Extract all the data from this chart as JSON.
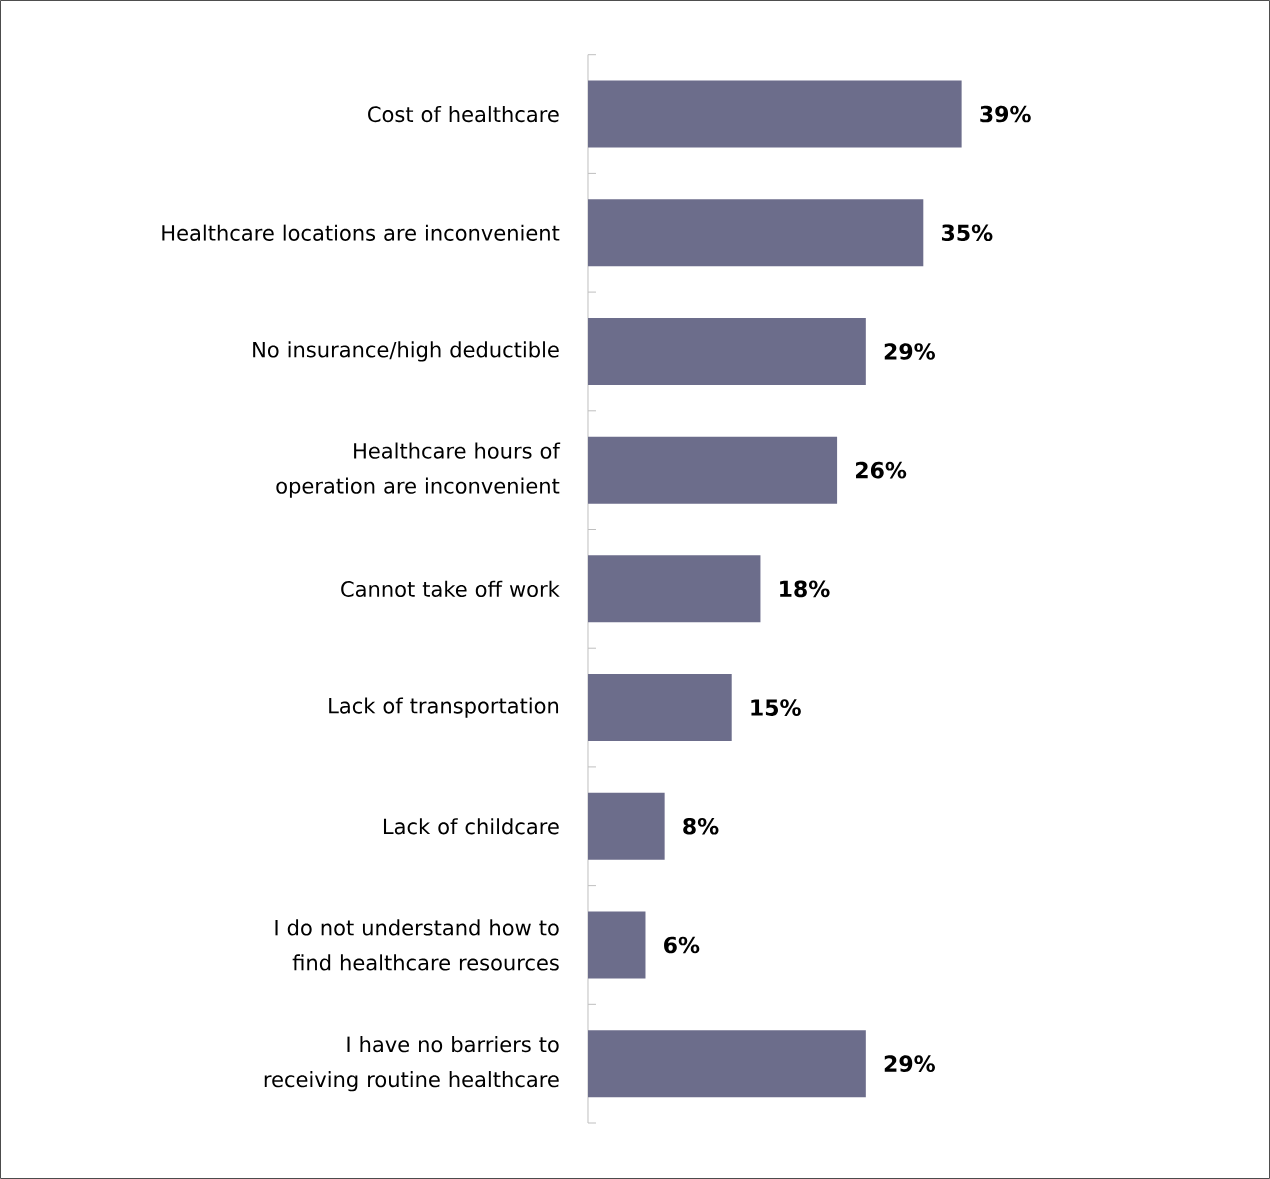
{
  "chart_data": {
    "type": "bar",
    "orientation": "horizontal",
    "categories": [
      "Cost of healthcare",
      "Healthcare locations are inconvenient",
      "No insurance/high deductible",
      "Healthcare hours of operation are inconvenient",
      "Cannot take off work",
      "Lack of transportation",
      "Lack of childcare",
      "I do not understand how to find healthcare resources",
      "I have no barriers to receiving routine healthcare"
    ],
    "values": [
      39,
      35,
      29,
      26,
      18,
      15,
      8,
      6,
      29
    ],
    "value_labels": [
      "39%",
      "35%",
      "29%",
      "26%",
      "18%",
      "15%",
      "8%",
      "6%",
      "29%"
    ],
    "color": "#6c6d8b"
  }
}
